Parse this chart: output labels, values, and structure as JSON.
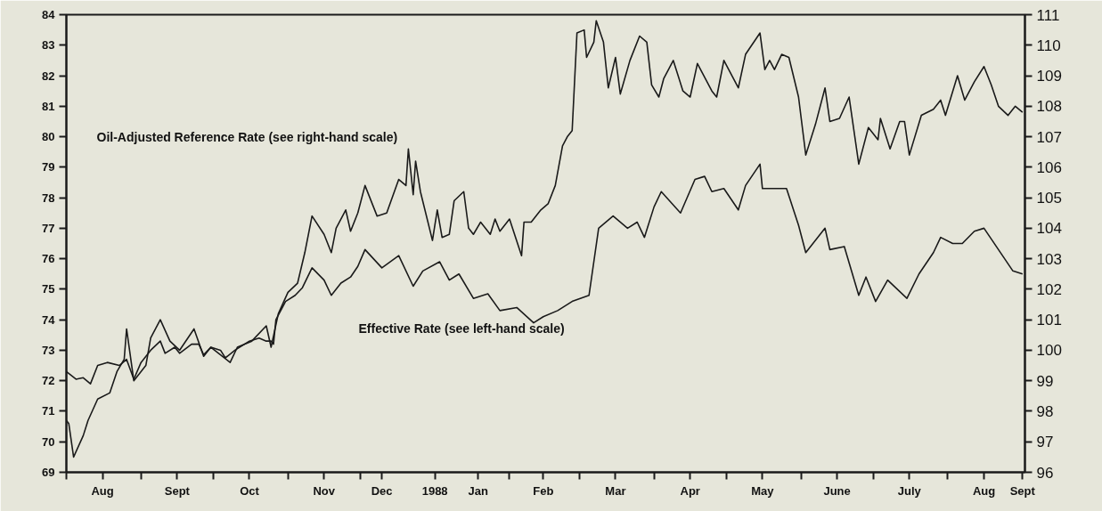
{
  "chart_data": {
    "type": "line",
    "annotations": [
      "Oil-Adjusted Reference Rate (see right-hand scale)",
      "Effective Rate (see left-hand scale)"
    ],
    "series": [
      {
        "color": "#1a1a1a",
        "axis": "y2",
        "x": [
          "1987-08-01",
          "1987-08-02",
          "1987-08-04",
          "1987-08-08",
          "1987-08-10",
          "1987-08-14",
          "1987-08-19",
          "1987-08-22",
          "1987-08-25",
          "1987-08-26",
          "1987-08-29",
          "1987-09-03",
          "1987-09-05",
          "1987-09-09",
          "1987-09-13",
          "1987-09-17",
          "1987-09-23",
          "1987-09-27",
          "1987-09-30",
          "1987-10-08",
          "1987-10-11",
          "1987-10-17",
          "1987-10-23",
          "1987-10-25",
          "1987-10-28",
          "1987-11-01",
          "1987-11-05",
          "1987-11-08",
          "1987-11-11",
          "1987-11-16",
          "1987-11-19",
          "1987-11-21",
          "1987-11-25",
          "1987-11-27",
          "1987-11-30",
          "1987-12-03",
          "1987-12-08",
          "1987-12-12",
          "1987-12-17",
          "1987-12-20",
          "1987-12-21",
          "1987-12-23",
          "1987-12-24",
          "1987-12-26",
          "1987-12-31",
          "1988-01-02",
          "1988-01-04",
          "1988-01-07",
          "1988-01-09",
          "1988-01-13",
          "1988-01-15",
          "1988-01-17",
          "1988-01-20",
          "1988-01-24",
          "1988-01-26",
          "1988-01-28",
          "1988-02-01",
          "1988-02-06",
          "1988-02-07",
          "1988-02-10",
          "1988-02-14",
          "1988-02-17",
          "1988-02-20",
          "1988-02-23",
          "1988-02-25",
          "1988-02-27",
          "1988-02-29",
          "1988-03-03",
          "1988-03-04",
          "1988-03-07",
          "1988-03-08",
          "1988-03-11",
          "1988-03-13",
          "1988-03-16",
          "1988-03-18",
          "1988-03-22",
          "1988-03-26",
          "1988-03-29",
          "1988-03-31",
          "1988-04-03",
          "1988-04-05",
          "1988-04-09",
          "1988-04-13",
          "1988-04-16",
          "1988-04-19",
          "1988-04-25",
          "1988-04-27",
          "1988-04-30",
          "1988-05-06",
          "1988-05-09",
          "1988-05-15",
          "1988-05-17",
          "1988-05-19",
          "1988-05-21",
          "1988-05-24",
          "1988-05-27",
          "1988-05-31",
          "1988-06-03",
          "1988-06-07",
          "1988-06-11",
          "1988-06-13",
          "1988-06-17",
          "1988-06-21",
          "1988-06-25",
          "1988-06-29",
          "1988-07-03",
          "1988-07-04",
          "1988-07-08",
          "1988-07-12",
          "1988-07-14",
          "1988-07-16",
          "1988-07-21",
          "1988-07-26",
          "1988-07-29",
          "1988-07-31",
          "1988-08-05",
          "1988-08-08",
          "1988-08-12",
          "1988-08-16",
          "1988-08-19",
          "1988-08-22",
          "1988-08-26",
          "1988-08-29",
          "1988-09-01"
        ],
        "values": [
          97.7,
          97.6,
          96.5,
          97.2,
          97.7,
          98.4,
          98.6,
          99.3,
          99.7,
          100.7,
          99.0,
          99.5,
          100.4,
          101.0,
          100.3,
          100.0,
          100.7,
          99.8,
          100.1,
          99.6,
          100.1,
          100.3,
          100.8,
          100.1,
          101.2,
          101.9,
          102.2,
          103.2,
          104.4,
          103.8,
          103.2,
          104.0,
          104.6,
          103.9,
          104.5,
          105.4,
          104.4,
          104.5,
          105.6,
          105.4,
          106.6,
          105.1,
          106.2,
          105.2,
          103.6,
          104.6,
          103.7,
          103.8,
          104.9,
          105.2,
          104.0,
          103.8,
          104.2,
          103.8,
          104.3,
          103.9,
          104.3,
          103.1,
          104.2,
          104.2,
          104.6,
          104.8,
          105.4,
          106.7,
          107.0,
          107.2,
          110.4,
          110.5,
          109.6,
          110.1,
          110.8,
          110.1,
          108.6,
          109.6,
          108.4,
          109.5,
          110.3,
          110.1,
          108.7,
          108.3,
          108.9,
          109.5,
          108.5,
          108.3,
          109.4,
          108.5,
          108.3,
          109.5,
          108.6,
          109.7,
          110.4,
          109.2,
          109.5,
          109.2,
          109.7,
          109.6,
          108.3,
          106.4,
          107.4,
          108.6,
          107.5,
          107.6,
          108.3,
          106.1,
          107.3,
          106.9,
          107.6,
          106.6,
          107.5,
          107.5,
          106.4,
          107.7,
          107.9,
          108.2,
          107.7,
          109.0,
          108.2,
          108.8,
          109.3,
          108.7,
          108.0,
          107.7,
          108.0,
          107.8
        ]
      },
      {
        "color": "#1a1a1a",
        "x": [
          "1987-08-01",
          "1987-08-05",
          "1987-08-08",
          "1987-08-11",
          "1987-08-14",
          "1987-08-18",
          "1987-08-23",
          "1987-08-26",
          "1987-08-29",
          "1987-09-01",
          "1987-09-05",
          "1987-09-09",
          "1987-09-11",
          "1987-09-15",
          "1987-09-17",
          "1987-09-22",
          "1987-09-25",
          "1987-09-27",
          "1987-09-30",
          "1987-10-04",
          "1987-10-06",
          "1987-10-10",
          "1987-10-16",
          "1987-10-20",
          "1987-10-23",
          "1987-10-25",
          "1987-10-26",
          "1987-10-27",
          "1987-10-31",
          "1987-11-04",
          "1987-11-07",
          "1987-11-11",
          "1987-11-16",
          "1987-11-19",
          "1987-11-23",
          "1987-11-27",
          "1987-11-30",
          "1987-12-03",
          "1987-12-10",
          "1987-12-17",
          "1987-12-23",
          "1987-12-27",
          "1988-01-03",
          "1988-01-07",
          "1988-01-11",
          "1988-01-17",
          "1988-01-23",
          "1988-01-28",
          "1988-02-04",
          "1988-02-11",
          "1988-02-15",
          "1988-02-21",
          "1988-02-27",
          "1988-03-05",
          "1988-03-09",
          "1988-03-15",
          "1988-03-21",
          "1988-03-25",
          "1988-03-28",
          "1988-04-01",
          "1988-04-04",
          "1988-04-12",
          "1988-04-18",
          "1988-04-22",
          "1988-04-25",
          "1988-04-30",
          "1988-05-06",
          "1988-05-09",
          "1988-05-15",
          "1988-05-16",
          "1988-05-26",
          "1988-05-31",
          "1988-06-03",
          "1988-06-07",
          "1988-06-11",
          "1988-06-13",
          "1988-06-19",
          "1988-06-25",
          "1988-06-28",
          "1988-07-02",
          "1988-07-07",
          "1988-07-15",
          "1988-07-20",
          "1988-07-26",
          "1988-07-29",
          "1988-08-03",
          "1988-08-07",
          "1988-08-12",
          "1988-08-16",
          "1988-08-22",
          "1988-08-28",
          "1988-09-01"
        ],
        "values": [
          72.3,
          72.05,
          72.1,
          71.9,
          72.5,
          72.6,
          72.5,
          72.7,
          72.05,
          72.6,
          73.0,
          73.3,
          72.9,
          73.1,
          72.9,
          73.2,
          73.2,
          72.85,
          73.1,
          73.0,
          72.75,
          73.0,
          73.3,
          73.4,
          73.3,
          73.3,
          73.2,
          74.0,
          74.6,
          74.8,
          75.05,
          75.7,
          75.3,
          74.8,
          75.2,
          75.4,
          75.75,
          76.3,
          75.7,
          76.1,
          75.1,
          75.6,
          75.9,
          75.3,
          75.5,
          74.7,
          74.85,
          74.3,
          74.4,
          73.9,
          74.1,
          74.3,
          74.6,
          74.8,
          77.0,
          77.4,
          77.0,
          77.2,
          76.7,
          77.7,
          78.2,
          77.5,
          78.6,
          78.7,
          78.2,
          78.3,
          77.6,
          78.4,
          79.1,
          78.3,
          78.3,
          77.1,
          76.2,
          76.6,
          77.0,
          76.3,
          76.4,
          74.8,
          75.4,
          74.6,
          75.3,
          74.7,
          75.5,
          76.2,
          76.7,
          76.5,
          76.5,
          76.9,
          77.0,
          76.3,
          75.6,
          75.5
        ]
      }
    ],
    "xlim": [
      "1987-08-01",
      "1988-09-02"
    ],
    "xticks": [
      {
        "value": "1987-08-01",
        "label": null
      },
      {
        "value": "1987-08-16",
        "label": "Aug"
      },
      {
        "value": "1987-09-01",
        "label": null
      },
      {
        "value": "1987-09-16",
        "label": "Sept"
      },
      {
        "value": "1987-10-01",
        "label": null
      },
      {
        "value": "1987-10-16",
        "label": "Oct"
      },
      {
        "value": "1987-11-01",
        "label": null
      },
      {
        "value": "1987-11-16",
        "label": "Nov"
      },
      {
        "value": "1987-12-01",
        "label": null
      },
      {
        "value": "1987-12-10",
        "label": "Dec"
      },
      {
        "value": "1988-01-01",
        "label": "1988"
      },
      {
        "value": "1988-01-19",
        "label": "Jan"
      },
      {
        "value": "1988-02-01",
        "label": null
      },
      {
        "value": "1988-02-15",
        "label": "Feb"
      },
      {
        "value": "1988-03-01",
        "label": null
      },
      {
        "value": "1988-03-16",
        "label": "Mar"
      },
      {
        "value": "1988-04-01",
        "label": null
      },
      {
        "value": "1988-04-16",
        "label": "Apr"
      },
      {
        "value": "1988-05-01",
        "label": null
      },
      {
        "value": "1988-05-16",
        "label": "May"
      },
      {
        "value": "1988-06-01",
        "label": null
      },
      {
        "value": "1988-06-16",
        "label": "June"
      },
      {
        "value": "1988-07-01",
        "label": null
      },
      {
        "value": "1988-07-16",
        "label": "July"
      },
      {
        "value": "1988-08-01",
        "label": null
      },
      {
        "value": "1988-08-16",
        "label": "Aug"
      },
      {
        "value": "1988-09-01",
        "label": "Sept"
      }
    ],
    "ylim": [
      69,
      84
    ],
    "yticks": [
      69,
      70,
      71,
      72,
      73,
      74,
      75,
      76,
      77,
      78,
      79,
      80,
      81,
      82,
      83,
      84
    ],
    "y2lim": [
      96,
      111
    ],
    "y2ticks": [
      96,
      97,
      98,
      99,
      100,
      101,
      102,
      103,
      104,
      105,
      106,
      107,
      108,
      109,
      110,
      111
    ],
    "grid": false,
    "marker": "none",
    "line_style": "solid"
  }
}
